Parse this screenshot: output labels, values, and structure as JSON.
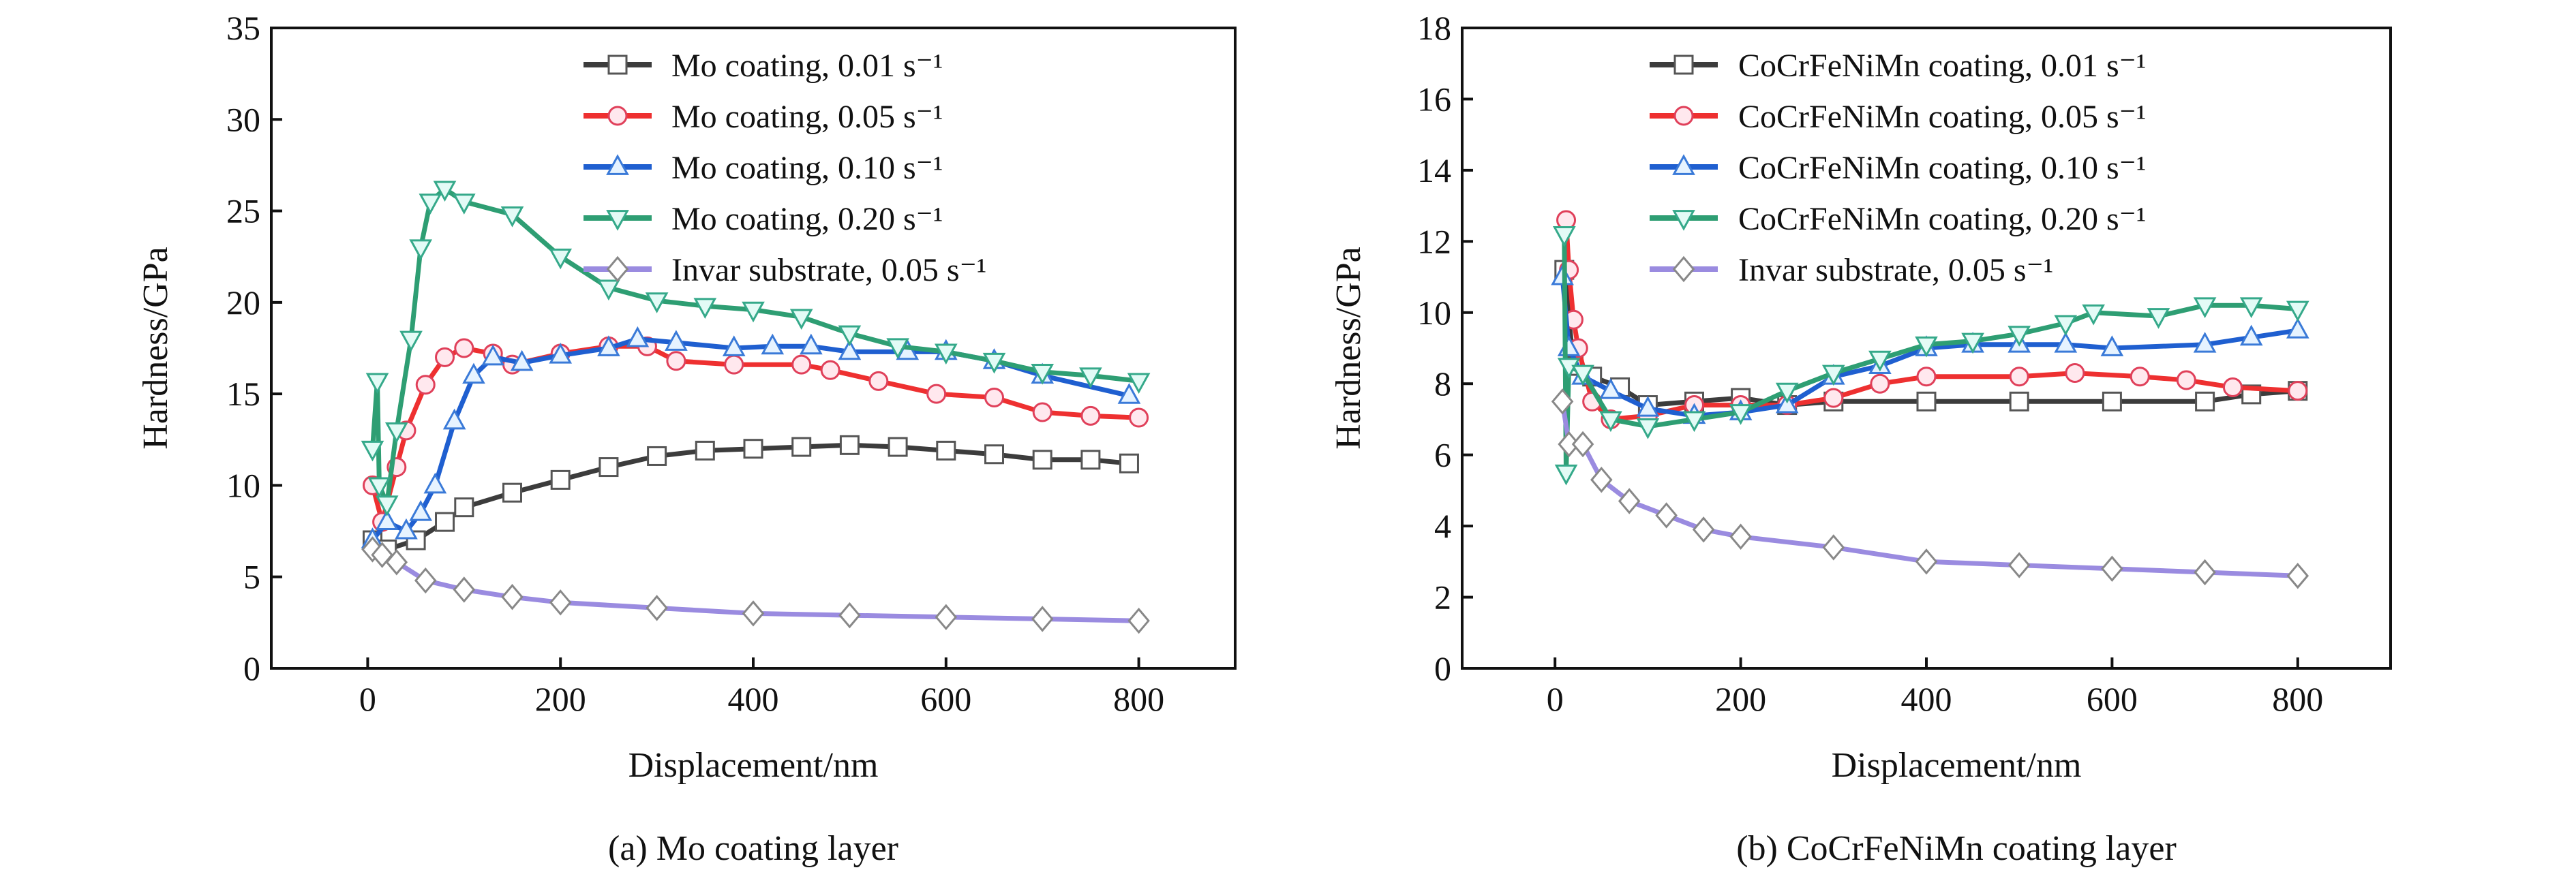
{
  "chart_data": [
    {
      "type": "line",
      "title": "(a) Mo coating layer",
      "xlabel": "Displacement/nm",
      "ylabel": "Hardness/GPa",
      "xlim": [
        -100,
        900
      ],
      "ylim": [
        0,
        35
      ],
      "xticks": [
        0,
        200,
        400,
        600,
        800
      ],
      "yticks": [
        0,
        5,
        10,
        15,
        20,
        25,
        30,
        35
      ],
      "legend": "top-right",
      "grid": false,
      "series": [
        {
          "name": "Mo coating, 0.01 s⁻¹",
          "color": "#3c3c3c",
          "marker": "square",
          "x": [
            5,
            20,
            50,
            80,
            100,
            150,
            200,
            250,
            300,
            350,
            400,
            450,
            500,
            550,
            600,
            650,
            700,
            750,
            790
          ],
          "y": [
            7,
            6.5,
            7,
            8,
            8.8,
            9.6,
            10.3,
            11,
            11.6,
            11.9,
            12,
            12.1,
            12.2,
            12.1,
            11.9,
            11.7,
            11.4,
            11.4,
            11.2
          ]
        },
        {
          "name": "Mo coating, 0.05 s⁻¹",
          "color": "#ee3030",
          "marker": "circle",
          "x": [
            5,
            15,
            30,
            40,
            60,
            80,
            100,
            130,
            150,
            200,
            250,
            290,
            320,
            380,
            450,
            480,
            530,
            590,
            650,
            700,
            750,
            800
          ],
          "y": [
            10,
            8,
            11,
            13,
            15.5,
            17,
            17.5,
            17.2,
            16.6,
            17.2,
            17.6,
            17.6,
            16.8,
            16.6,
            16.6,
            16.3,
            15.7,
            15,
            14.8,
            14,
            13.8,
            13.7
          ]
        },
        {
          "name": "Mo coating, 0.10 s⁻¹",
          "color": "#1f5fd0",
          "marker": "triangle-up",
          "x": [
            5,
            20,
            40,
            55,
            70,
            90,
            110,
            130,
            160,
            200,
            250,
            280,
            320,
            380,
            420,
            460,
            500,
            560,
            600,
            650,
            700,
            790
          ],
          "y": [
            7,
            8,
            7.5,
            8.5,
            10,
            13.5,
            16,
            17,
            16.7,
            17.1,
            17.5,
            18,
            17.8,
            17.5,
            17.6,
            17.6,
            17.3,
            17.3,
            17.3,
            16.8,
            16,
            14.9
          ]
        },
        {
          "name": "Mo coating, 0.20 s⁻¹",
          "color": "#2e9e73",
          "marker": "triangle-down",
          "x": [
            5,
            10,
            12,
            20,
            30,
            45,
            55,
            65,
            80,
            100,
            150,
            200,
            250,
            300,
            350,
            400,
            450,
            500,
            550,
            600,
            650,
            700,
            750,
            800
          ],
          "y": [
            12,
            15.7,
            10,
            9,
            13,
            18,
            23,
            25.5,
            26.2,
            25.5,
            24.8,
            22.5,
            20.8,
            20.1,
            19.8,
            19.6,
            19.2,
            18.3,
            17.6,
            17.3,
            16.8,
            16.2,
            16,
            15.7
          ]
        },
        {
          "name": "Invar substrate, 0.05 s⁻¹",
          "color": "#9a8be0",
          "marker": "diamond",
          "x": [
            5,
            15,
            30,
            60,
            100,
            150,
            200,
            300,
            400,
            500,
            600,
            700,
            800
          ],
          "y": [
            6.5,
            6.2,
            5.8,
            4.8,
            4.3,
            3.9,
            3.6,
            3.3,
            3.0,
            2.9,
            2.8,
            2.7,
            2.6
          ]
        }
      ]
    },
    {
      "type": "line",
      "title": "(b) CoCrFeNiMn coating layer",
      "xlabel": "Displacement/nm",
      "ylabel": "Hardness/GPa",
      "xlim": [
        -100,
        900
      ],
      "ylim": [
        0,
        18
      ],
      "xticks": [
        0,
        200,
        400,
        600,
        800
      ],
      "yticks": [
        0,
        2,
        4,
        6,
        8,
        10,
        12,
        14,
        16,
        18
      ],
      "legend": "top-right",
      "grid": false,
      "series": [
        {
          "name": "CoCrFeNiMn coating, 0.01 s⁻¹",
          "color": "#3c3c3c",
          "marker": "square",
          "x": [
            10,
            20,
            40,
            70,
            100,
            150,
            200,
            250,
            300,
            400,
            500,
            600,
            700,
            750,
            800
          ],
          "y": [
            11.2,
            8.5,
            8.2,
            7.9,
            7.4,
            7.5,
            7.6,
            7.4,
            7.5,
            7.5,
            7.5,
            7.5,
            7.5,
            7.7,
            7.8
          ]
        },
        {
          "name": "CoCrFeNiMn coating, 0.05 s⁻¹",
          "color": "#ee3030",
          "marker": "circle",
          "x": [
            12,
            15,
            20,
            25,
            40,
            60,
            100,
            150,
            200,
            250,
            300,
            350,
            400,
            500,
            560,
            630,
            680,
            730,
            800
          ],
          "y": [
            12.6,
            11.2,
            9.8,
            9,
            7.5,
            7,
            7.1,
            7.4,
            7.4,
            7.4,
            7.6,
            8.0,
            8.2,
            8.2,
            8.3,
            8.2,
            8.1,
            7.9,
            7.8
          ]
        },
        {
          "name": "CoCrFeNiMn coating, 0.10 s⁻¹",
          "color": "#1f5fd0",
          "marker": "triangle-up",
          "x": [
            8,
            15,
            30,
            60,
            100,
            150,
            200,
            250,
            300,
            350,
            400,
            450,
            500,
            550,
            600,
            700,
            750,
            800
          ],
          "y": [
            11,
            9,
            8.2,
            7.8,
            7.3,
            7.1,
            7.2,
            7.4,
            8.2,
            8.5,
            9.0,
            9.1,
            9.1,
            9.1,
            9.0,
            9.1,
            9.3,
            9.5
          ]
        },
        {
          "name": "CoCrFeNiMn coating, 0.20 s⁻¹",
          "color": "#2e9e73",
          "marker": "triangle-down",
          "x": [
            10,
            12,
            15,
            30,
            60,
            100,
            150,
            200,
            250,
            300,
            350,
            400,
            450,
            500,
            550,
            580,
            650,
            700,
            750,
            800
          ],
          "y": [
            12.2,
            5.5,
            8.5,
            8.3,
            7.0,
            6.8,
            7.0,
            7.2,
            7.8,
            8.3,
            8.7,
            9.1,
            9.2,
            9.4,
            9.7,
            10,
            9.9,
            10.2,
            10.2,
            10.1
          ]
        },
        {
          "name": "Invar substrate, 0.05 s⁻¹",
          "color": "#9a8be0",
          "marker": "diamond",
          "x": [
            8,
            15,
            30,
            50,
            80,
            120,
            160,
            200,
            300,
            400,
            500,
            600,
            700,
            800
          ],
          "y": [
            7.5,
            6.3,
            6.3,
            5.3,
            4.7,
            4.3,
            3.9,
            3.7,
            3.4,
            3.0,
            2.9,
            2.8,
            2.7,
            2.6
          ]
        }
      ]
    }
  ]
}
